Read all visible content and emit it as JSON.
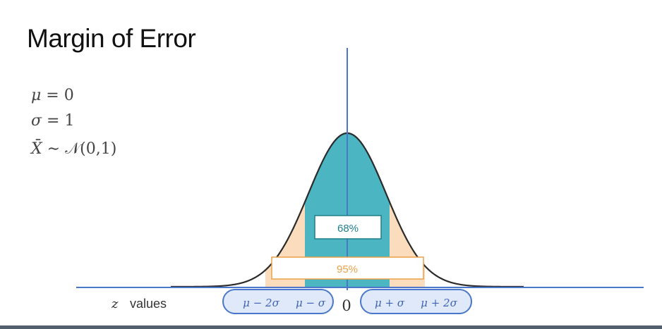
{
  "title": "Margin of Error",
  "equations": {
    "mu_symbol": "μ",
    "mu_value": " = 0",
    "sigma_symbol": "σ",
    "sigma_value": " = 1",
    "xbar_symbol": "X̄",
    "distribution": " ∼ 𝒩(0,1)"
  },
  "diagram": {
    "band_68_label": "68%",
    "band_95_label": "95%",
    "axis_label_italic": "z",
    "axis_label_rest": "values",
    "zero_label": "0",
    "left_pill_labels": [
      "μ − 2σ",
      "μ − σ"
    ],
    "right_pill_labels": [
      "μ + σ",
      "μ + 2σ"
    ]
  },
  "colors": {
    "axis": "#4a77c9",
    "curve": "#2b2b2b",
    "fill_68": "#4bb6c2",
    "fill_95": "#fbdcbc",
    "label_68": "#1e7f8a",
    "label_95": "#e9a24a",
    "pill_fill": "#dfe9fa",
    "pill_stroke": "#4a77c9",
    "pill_text": "#3f63b6"
  }
}
